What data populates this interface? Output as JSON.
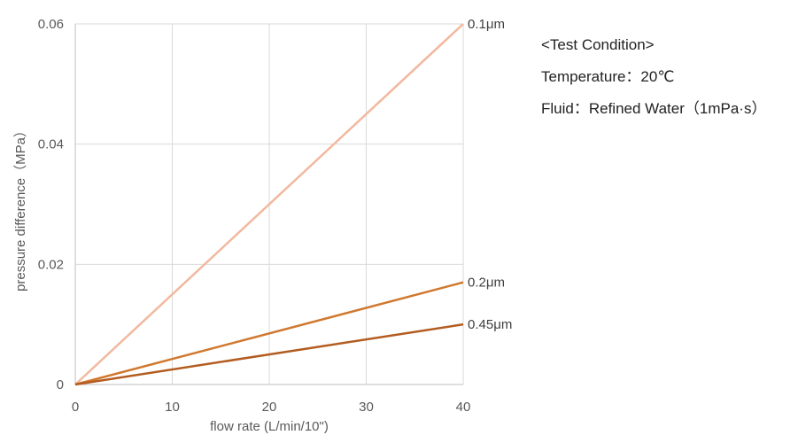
{
  "chart_data": {
    "type": "line",
    "title": "",
    "xlabel": "flow rate (L/min/10\")",
    "ylabel": "pressure difference（MPa）",
    "xlim": [
      0,
      40
    ],
    "ylim": [
      0,
      0.06
    ],
    "x_ticks": [
      0,
      10,
      20,
      30,
      40
    ],
    "x_tick_labels": [
      "0",
      "10",
      "20",
      "30",
      "40"
    ],
    "y_ticks": [
      0,
      0.02,
      0.04,
      0.06
    ],
    "y_tick_labels": [
      "0",
      "0.02",
      "0.04",
      "0.06"
    ],
    "grid": true,
    "series": [
      {
        "name": "0.1μm",
        "x": [
          0,
          40
        ],
        "y": [
          0,
          0.06
        ],
        "color": "#f2b89e"
      },
      {
        "name": "0.2μm",
        "x": [
          0,
          40
        ],
        "y": [
          0,
          0.017
        ],
        "color": "#d0782e"
      },
      {
        "name": "0.45μm",
        "x": [
          0,
          40
        ],
        "y": [
          0,
          0.01
        ],
        "color": "#b35c20"
      }
    ]
  },
  "conditions": {
    "heading": "<Test Condition>",
    "temperature": "Temperature：20℃",
    "fluid": "Fluid：Refined Water（1mPa·s）"
  }
}
